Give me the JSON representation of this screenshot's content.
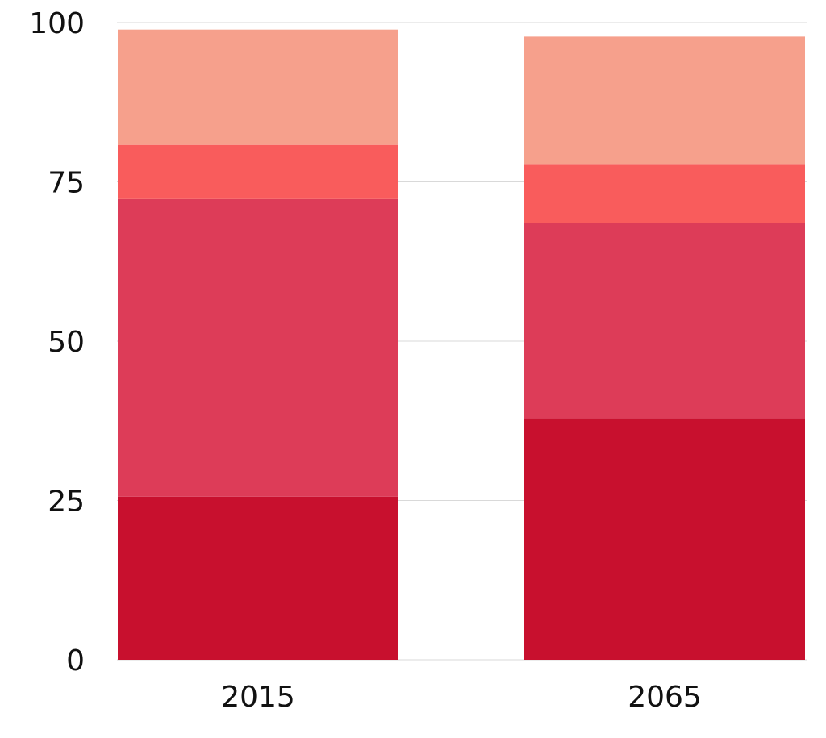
{
  "chart_data": {
    "type": "bar",
    "stacked": true,
    "categories": [
      "2015",
      "2065"
    ],
    "series": [
      {
        "values": [
          25.6,
          37.9
        ],
        "color": "#c8102e"
      },
      {
        "values": [
          46.7,
          30.6
        ],
        "color": "#dd3c58"
      },
      {
        "values": [
          8.5,
          9.3
        ],
        "color": "#f95c5c"
      },
      {
        "values": [
          18.1,
          20.0
        ],
        "color": "#f6a08c"
      }
    ],
    "y_ticks": [
      "0",
      "25",
      "50",
      "75",
      "100"
    ],
    "ylim": [
      0,
      100
    ],
    "grid": true,
    "legend": false,
    "title": "",
    "xlabel": "",
    "ylabel": ""
  }
}
